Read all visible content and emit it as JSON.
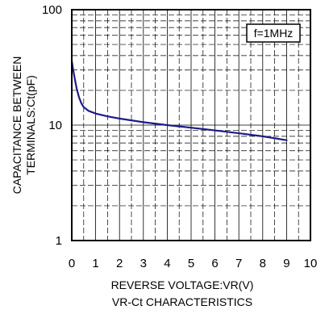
{
  "chart_data": {
    "type": "line",
    "title": "VR-Ct CHARACTERISTICS",
    "xlabel": "REVERSE VOLTAGE:VR(V)",
    "ylabel_lines": [
      "CAPACITANCE BETWEEN",
      "TERMINALS:Ct(pF)"
    ],
    "annotation": "f=1MHz",
    "xlim": [
      0,
      10
    ],
    "ylim": [
      1,
      100
    ],
    "yscale": "log",
    "grid": true,
    "xticks": [
      "0",
      "1",
      "2",
      "3",
      "4",
      "5",
      "6",
      "7",
      "8",
      "9",
      "10"
    ],
    "yticks": [
      "1",
      "10",
      "100"
    ],
    "series": [
      {
        "x": [
          0,
          0.05,
          0.1,
          0.2,
          0.3,
          0.4,
          0.5,
          0.7,
          1,
          1.5,
          2,
          3,
          4,
          5,
          6,
          7,
          8,
          9
        ],
        "y": [
          36,
          31,
          27,
          21,
          17.5,
          15.5,
          14.3,
          13.3,
          12.6,
          11.9,
          11.4,
          10.6,
          10.0,
          9.5,
          9.0,
          8.5,
          8.0,
          7.4
        ]
      }
    ]
  },
  "colors": {
    "line": "#1c1c8a",
    "frame": "#000000"
  }
}
